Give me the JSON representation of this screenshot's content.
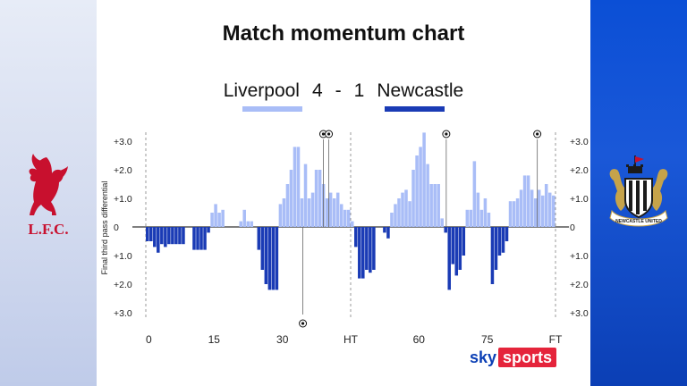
{
  "title": "Match momentum chart",
  "scoreline": {
    "home_team": "Liverpool",
    "home_score": "4",
    "separator": "-",
    "away_score": "1",
    "away_team": "Newcastle"
  },
  "colors": {
    "home": "#a9bdf7",
    "away": "#1a3bb5",
    "liverpool_crest": "#c8102e",
    "newcastle_panel": "#0b4fd6"
  },
  "crests": {
    "left_text": "L.F.C.",
    "right_text": "NEWCASTLE UNITED"
  },
  "brand": {
    "sky": "sky",
    "sports": "sports"
  },
  "chart_data": {
    "type": "bar",
    "ylabel": "Final third pass differential",
    "x_tick_labels": [
      "0",
      "15",
      "30",
      "HT",
      "60",
      "75",
      "FT"
    ],
    "x_tick_minutes": [
      0,
      15,
      30,
      45,
      60,
      75,
      90
    ],
    "y_tick_labels": [
      "+3.0",
      "+2.0",
      "+1.0",
      "0",
      "+1.0",
      "+2.0",
      "+3.0"
    ],
    "y_tick_values": [
      3,
      2,
      1,
      0,
      -1,
      -2,
      -3
    ],
    "ylim": [
      -3,
      3
    ],
    "halves": [
      {
        "start_minute": 0,
        "values": [
          -0.5,
          -0.5,
          -0.7,
          -0.9,
          -0.6,
          -0.7,
          -0.6,
          -0.6,
          -0.6,
          -0.6,
          -0.6,
          0,
          0,
          -0.8,
          -0.8,
          -0.8,
          -0.8,
          -0.2,
          0.5,
          0.8,
          0.5,
          0.6,
          0,
          0,
          0,
          0,
          0.2,
          0.6,
          0.2,
          0.2,
          0,
          -0.8,
          -1.5,
          -2.0,
          -2.2,
          -2.2,
          -2.2,
          0.8,
          1.0,
          1.5,
          2.0,
          2.8,
          2.8,
          1.0,
          2.2,
          1.0,
          1.2,
          2.0,
          2.0,
          1.5,
          1.0,
          1.2,
          1.0,
          1.2,
          0.8,
          0.6,
          0.6
        ]
      },
      {
        "start_minute": 45,
        "values": [
          0.2,
          -0.7,
          -1.8,
          -1.8,
          -1.5,
          -1.6,
          -1.5,
          0,
          0,
          -0.2,
          -0.4,
          0.5,
          0.8,
          1.0,
          1.2,
          1.3,
          0.9,
          2.0,
          2.5,
          2.8,
          3.3,
          2.2,
          1.5,
          1.5,
          1.5,
          0.3,
          -0.2,
          -2.2,
          -1.3,
          -1.7,
          -1.5,
          -1.0,
          0.6,
          0.6,
          2.3,
          1.2,
          0.6,
          1.0,
          0.5,
          -2.0,
          -1.5,
          -1.0,
          -0.9,
          -0.5,
          0.9,
          0.9,
          1.0,
          1.3,
          1.8,
          1.8,
          1.3,
          1.0,
          1.3,
          1.1,
          1.5,
          1.2,
          1.1
        ]
      }
    ],
    "goals": [
      {
        "team": "Newcastle",
        "minute": 34.5
      },
      {
        "team": "Liverpool",
        "minute": 39
      },
      {
        "team": "Liverpool",
        "minute": 40.2
      },
      {
        "team": "Liverpool",
        "minute": 66
      },
      {
        "team": "Liverpool",
        "minute": 86
      }
    ]
  }
}
